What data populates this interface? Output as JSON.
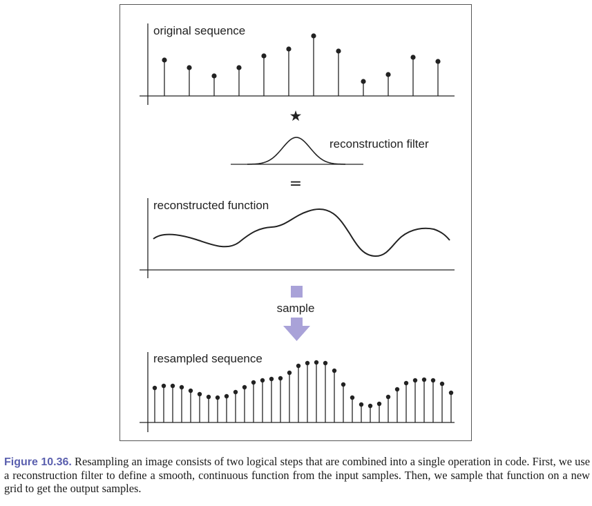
{
  "diagram": {
    "panels": {
      "original_label": "original sequence",
      "filter_label": "reconstruction filter",
      "reconstructed_label": "reconstructed function",
      "resampled_label": "resampled sequence"
    },
    "operators": {
      "convolve": "★",
      "equals": "="
    },
    "arrow_label": "sample",
    "colors": {
      "ink": "#222222",
      "arrow": "#a9a2d8",
      "caption_number": "#5a5fae"
    },
    "original_sequence": [
      0.52,
      0.41,
      0.29,
      0.41,
      0.58,
      0.68,
      0.87,
      0.65,
      0.21,
      0.31,
      0.56,
      0.5
    ],
    "resampled_sequence": [
      0.5,
      0.53,
      0.53,
      0.51,
      0.46,
      0.41,
      0.37,
      0.36,
      0.38,
      0.44,
      0.51,
      0.58,
      0.61,
      0.63,
      0.64,
      0.72,
      0.82,
      0.86,
      0.87,
      0.86,
      0.75,
      0.55,
      0.36,
      0.26,
      0.24,
      0.27,
      0.37,
      0.48,
      0.57,
      0.61,
      0.62,
      0.61,
      0.56,
      0.43
    ]
  },
  "caption": {
    "number": "Figure 10.36.",
    "text": "Resampling an image consists of two logical steps that are combined into a single operation in code. First, we use a reconstruction filter to define a smooth, continuous function from the input samples. Then, we sample that function on a new grid to get the output samples."
  }
}
